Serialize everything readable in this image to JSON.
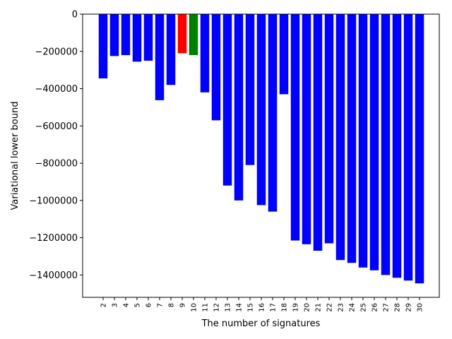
{
  "chart_data": {
    "type": "bar",
    "title": "",
    "xlabel": "The number of signatures",
    "ylabel": "Variational lower bound",
    "categories": [
      "2",
      "3",
      "4",
      "5",
      "6",
      "7",
      "8",
      "9",
      "10",
      "11",
      "12",
      "13",
      "14",
      "15",
      "16",
      "17",
      "18",
      "19",
      "20",
      "21",
      "22",
      "23",
      "24",
      "25",
      "26",
      "27",
      "28",
      "29",
      "30"
    ],
    "values": [
      -345000,
      -225000,
      -220000,
      -255000,
      -250000,
      -462000,
      -380000,
      -210000,
      -220000,
      -420000,
      -570000,
      -920000,
      -1000000,
      -810000,
      -1025000,
      -1060000,
      -430000,
      -1215000,
      -1235000,
      -1270000,
      -1230000,
      -1320000,
      -1335000,
      -1360000,
      -1375000,
      -1400000,
      -1415000,
      -1430000,
      -1445000
    ],
    "bar_colors": [
      "#0000ff",
      "#0000ff",
      "#0000ff",
      "#0000ff",
      "#0000ff",
      "#0000ff",
      "#0000ff",
      "#ff0000",
      "#008000",
      "#0000ff",
      "#0000ff",
      "#0000ff",
      "#0000ff",
      "#0000ff",
      "#0000ff",
      "#0000ff",
      "#0000ff",
      "#0000ff",
      "#0000ff",
      "#0000ff",
      "#0000ff",
      "#0000ff",
      "#0000ff",
      "#0000ff",
      "#0000ff",
      "#0000ff",
      "#0000ff",
      "#0000ff",
      "#0000ff"
    ],
    "ylim": [
      -1520000,
      0
    ],
    "yticks": [
      0,
      -200000,
      -400000,
      -600000,
      -800000,
      -1000000,
      -1200000,
      -1400000
    ],
    "ytick_labels": [
      "0",
      "−200000",
      "−400000",
      "−600000",
      "−800000",
      "−1000000",
      "−1200000",
      "−1400000"
    ],
    "grid": false,
    "legend": "none"
  }
}
